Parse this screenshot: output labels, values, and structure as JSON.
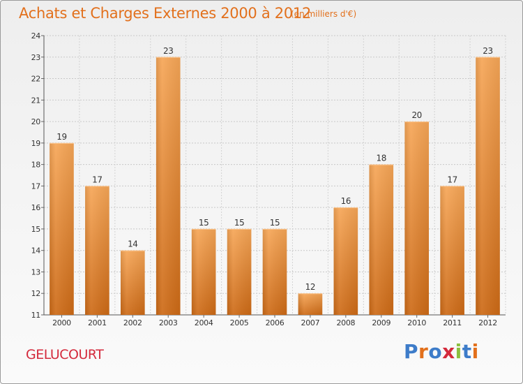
{
  "header": {
    "title": "Achats et Charges Externes 2000 à 2012",
    "unit": "(en milliers d'€)"
  },
  "footer": {
    "commune": "GELUCOURT",
    "brand": "Proxiti"
  },
  "colors": {
    "title": "#e2701c",
    "commune": "#d42a3c",
    "bar_light": "#f6a657",
    "bar_dark": "#cd6a16",
    "brand_letters": [
      "#3d7cc9",
      "#e2701c",
      "#3d7cc9",
      "#d42a3c",
      "#8cbf3f",
      "#3d7cc9",
      "#e2701c"
    ]
  },
  "chart_data": {
    "type": "bar",
    "title": "Achats et Charges Externes 2000 à 2012",
    "subtitle": "(en milliers d'€)",
    "xlabel": "",
    "ylabel": "",
    "categories": [
      "2000",
      "2001",
      "2002",
      "2003",
      "2004",
      "2005",
      "2006",
      "2007",
      "2008",
      "2009",
      "2010",
      "2011",
      "2012"
    ],
    "values": [
      19,
      17,
      14,
      23,
      15,
      15,
      15,
      12,
      16,
      18,
      20,
      17,
      23
    ],
    "ylim": [
      11,
      24
    ],
    "yticks": [
      11,
      12,
      13,
      14,
      15,
      16,
      17,
      18,
      19,
      20,
      21,
      22,
      23,
      24
    ],
    "grid": true,
    "legend": "none"
  }
}
